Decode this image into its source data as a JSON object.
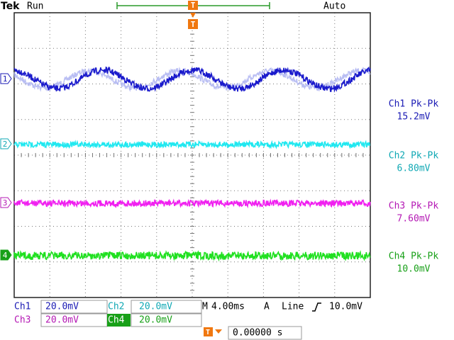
{
  "header": {
    "brand": "Tek",
    "status": "Run",
    "trigger_mode": "Auto",
    "trigger_marker": "T"
  },
  "channel_markers": [
    "1",
    "2",
    "3",
    "4"
  ],
  "measurements": [
    {
      "label": "Ch1 Pk-Pk",
      "value": "15.2mV"
    },
    {
      "label": "Ch2 Pk-Pk",
      "value": "6.80mV"
    },
    {
      "label": "Ch3 Pk-Pk",
      "value": "7.60mV"
    },
    {
      "label": "Ch4 Pk-Pk",
      "value": "10.0mV"
    }
  ],
  "settings": {
    "ch1": "Ch1",
    "ch1_scale": "20.0mV",
    "ch2": "Ch2",
    "ch2_scale": "20.0mV",
    "ch3": "Ch3",
    "ch3_scale": "20.0mV",
    "ch4": "Ch4",
    "ch4_scale": "20.0mV",
    "timebase_label": "M",
    "timebase": "4.00ms",
    "trigger_source_label": "A",
    "trigger_source": "Line",
    "trigger_level": "10.0mV",
    "trigger_time": "0.00000 s"
  }
}
